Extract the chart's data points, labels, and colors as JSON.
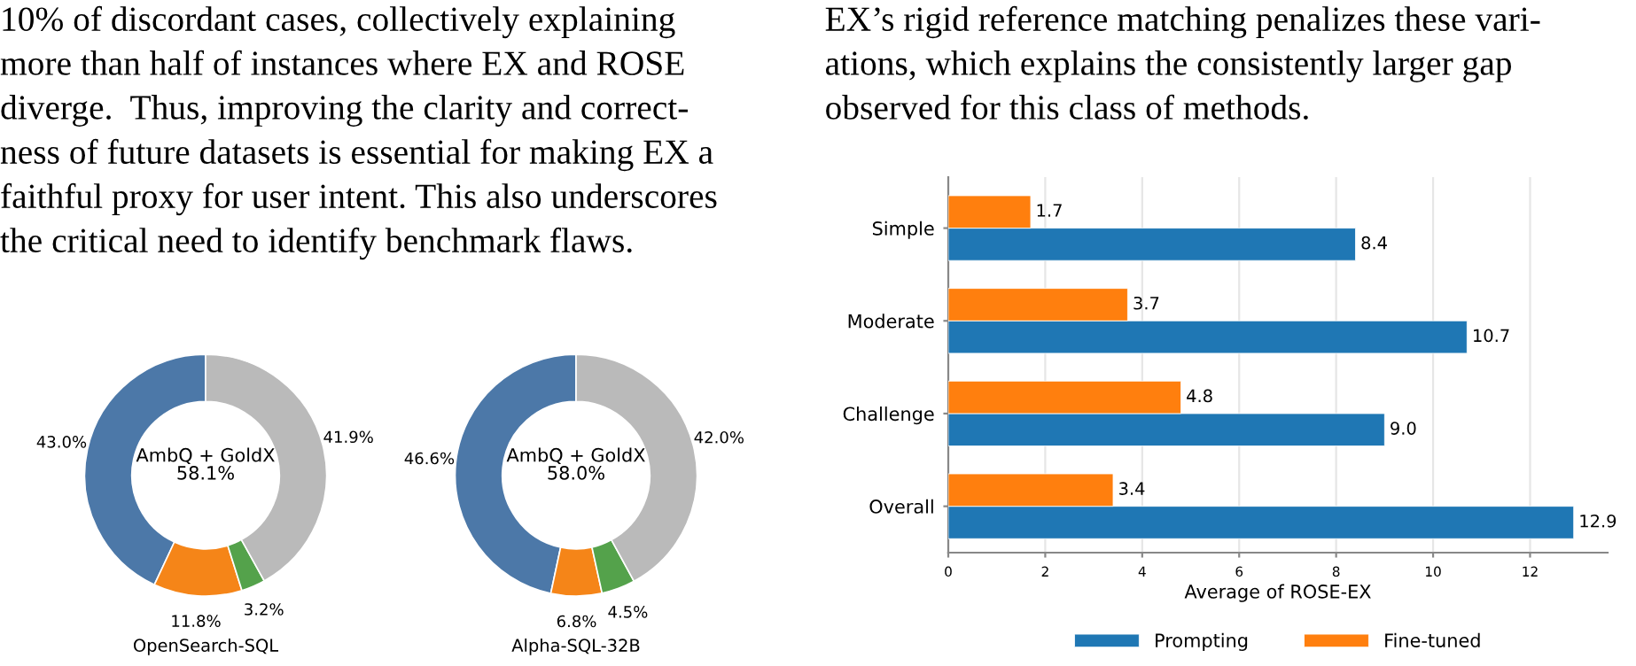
{
  "chart_data": [
    {
      "type": "other",
      "annotations": [
        "10% of discordant cases, collectively explaining",
        "more than half of instances where EX and ROSE",
        "diverge.  Thus, improving the clarity and correct-",
        "ness of future datasets is essential for making EX a",
        "faithful proxy for user intent. This also underscores",
        "the critical need to identify benchmark flaws."
      ]
    },
    {
      "type": "other",
      "annotations": [
        "EX’s rigid reference matching penalizes these vari-",
        "ations, which explains the consistently larger gap",
        "observed for this class of methods."
      ]
    },
    {
      "type": "donut",
      "xlabel": "OpenSearch-SQL",
      "annotations": [
        "AmbQ + GoldX\n58.1%"
      ],
      "categories": [
        null,
        null,
        null,
        null
      ],
      "values": [
        43.0,
        11.8,
        3.2,
        41.9
      ],
      "value_labels": [
        "43.0%",
        "11.8%",
        "3.2%",
        "41.9%"
      ],
      "colors": [
        "#4c78a8",
        "#f58518",
        "#54a24b",
        "#bababa"
      ]
    },
    {
      "type": "donut",
      "xlabel": "Alpha-SQL-32B",
      "annotations": [
        "AmbQ + GoldX\n58.0%"
      ],
      "categories": [
        null,
        null,
        null,
        null
      ],
      "values": [
        46.6,
        6.8,
        4.5,
        42.0
      ],
      "value_labels": [
        "46.6%",
        "6.8%",
        "4.5%",
        "42.0%"
      ],
      "colors": [
        "#4c78a8",
        "#f58518",
        "#54a24b",
        "#bababa"
      ]
    },
    {
      "type": "bar",
      "orientation": "horizontal",
      "xlabel": "Average of ROSE-EX",
      "categories": [
        "Simple",
        "Moderate",
        "Challenge",
        "Overall"
      ],
      "series": [
        {
          "name": "Prompting",
          "color": "#1f77b4",
          "values": [
            8.4,
            10.7,
            9.0,
            12.9
          ],
          "value_labels": [
            "8.4",
            "10.7",
            "9.0",
            "12.9"
          ]
        },
        {
          "name": "Fine-tuned",
          "color": "#ff7f0e",
          "values": [
            1.7,
            3.7,
            4.8,
            3.4
          ],
          "value_labels": [
            "1.7",
            "3.7",
            "4.8",
            "3.4"
          ]
        }
      ],
      "xlim": [
        0,
        13.6
      ],
      "xticks": [
        0,
        2,
        4,
        6,
        8,
        10,
        12
      ],
      "grid": "x",
      "legend": "bottom"
    }
  ]
}
